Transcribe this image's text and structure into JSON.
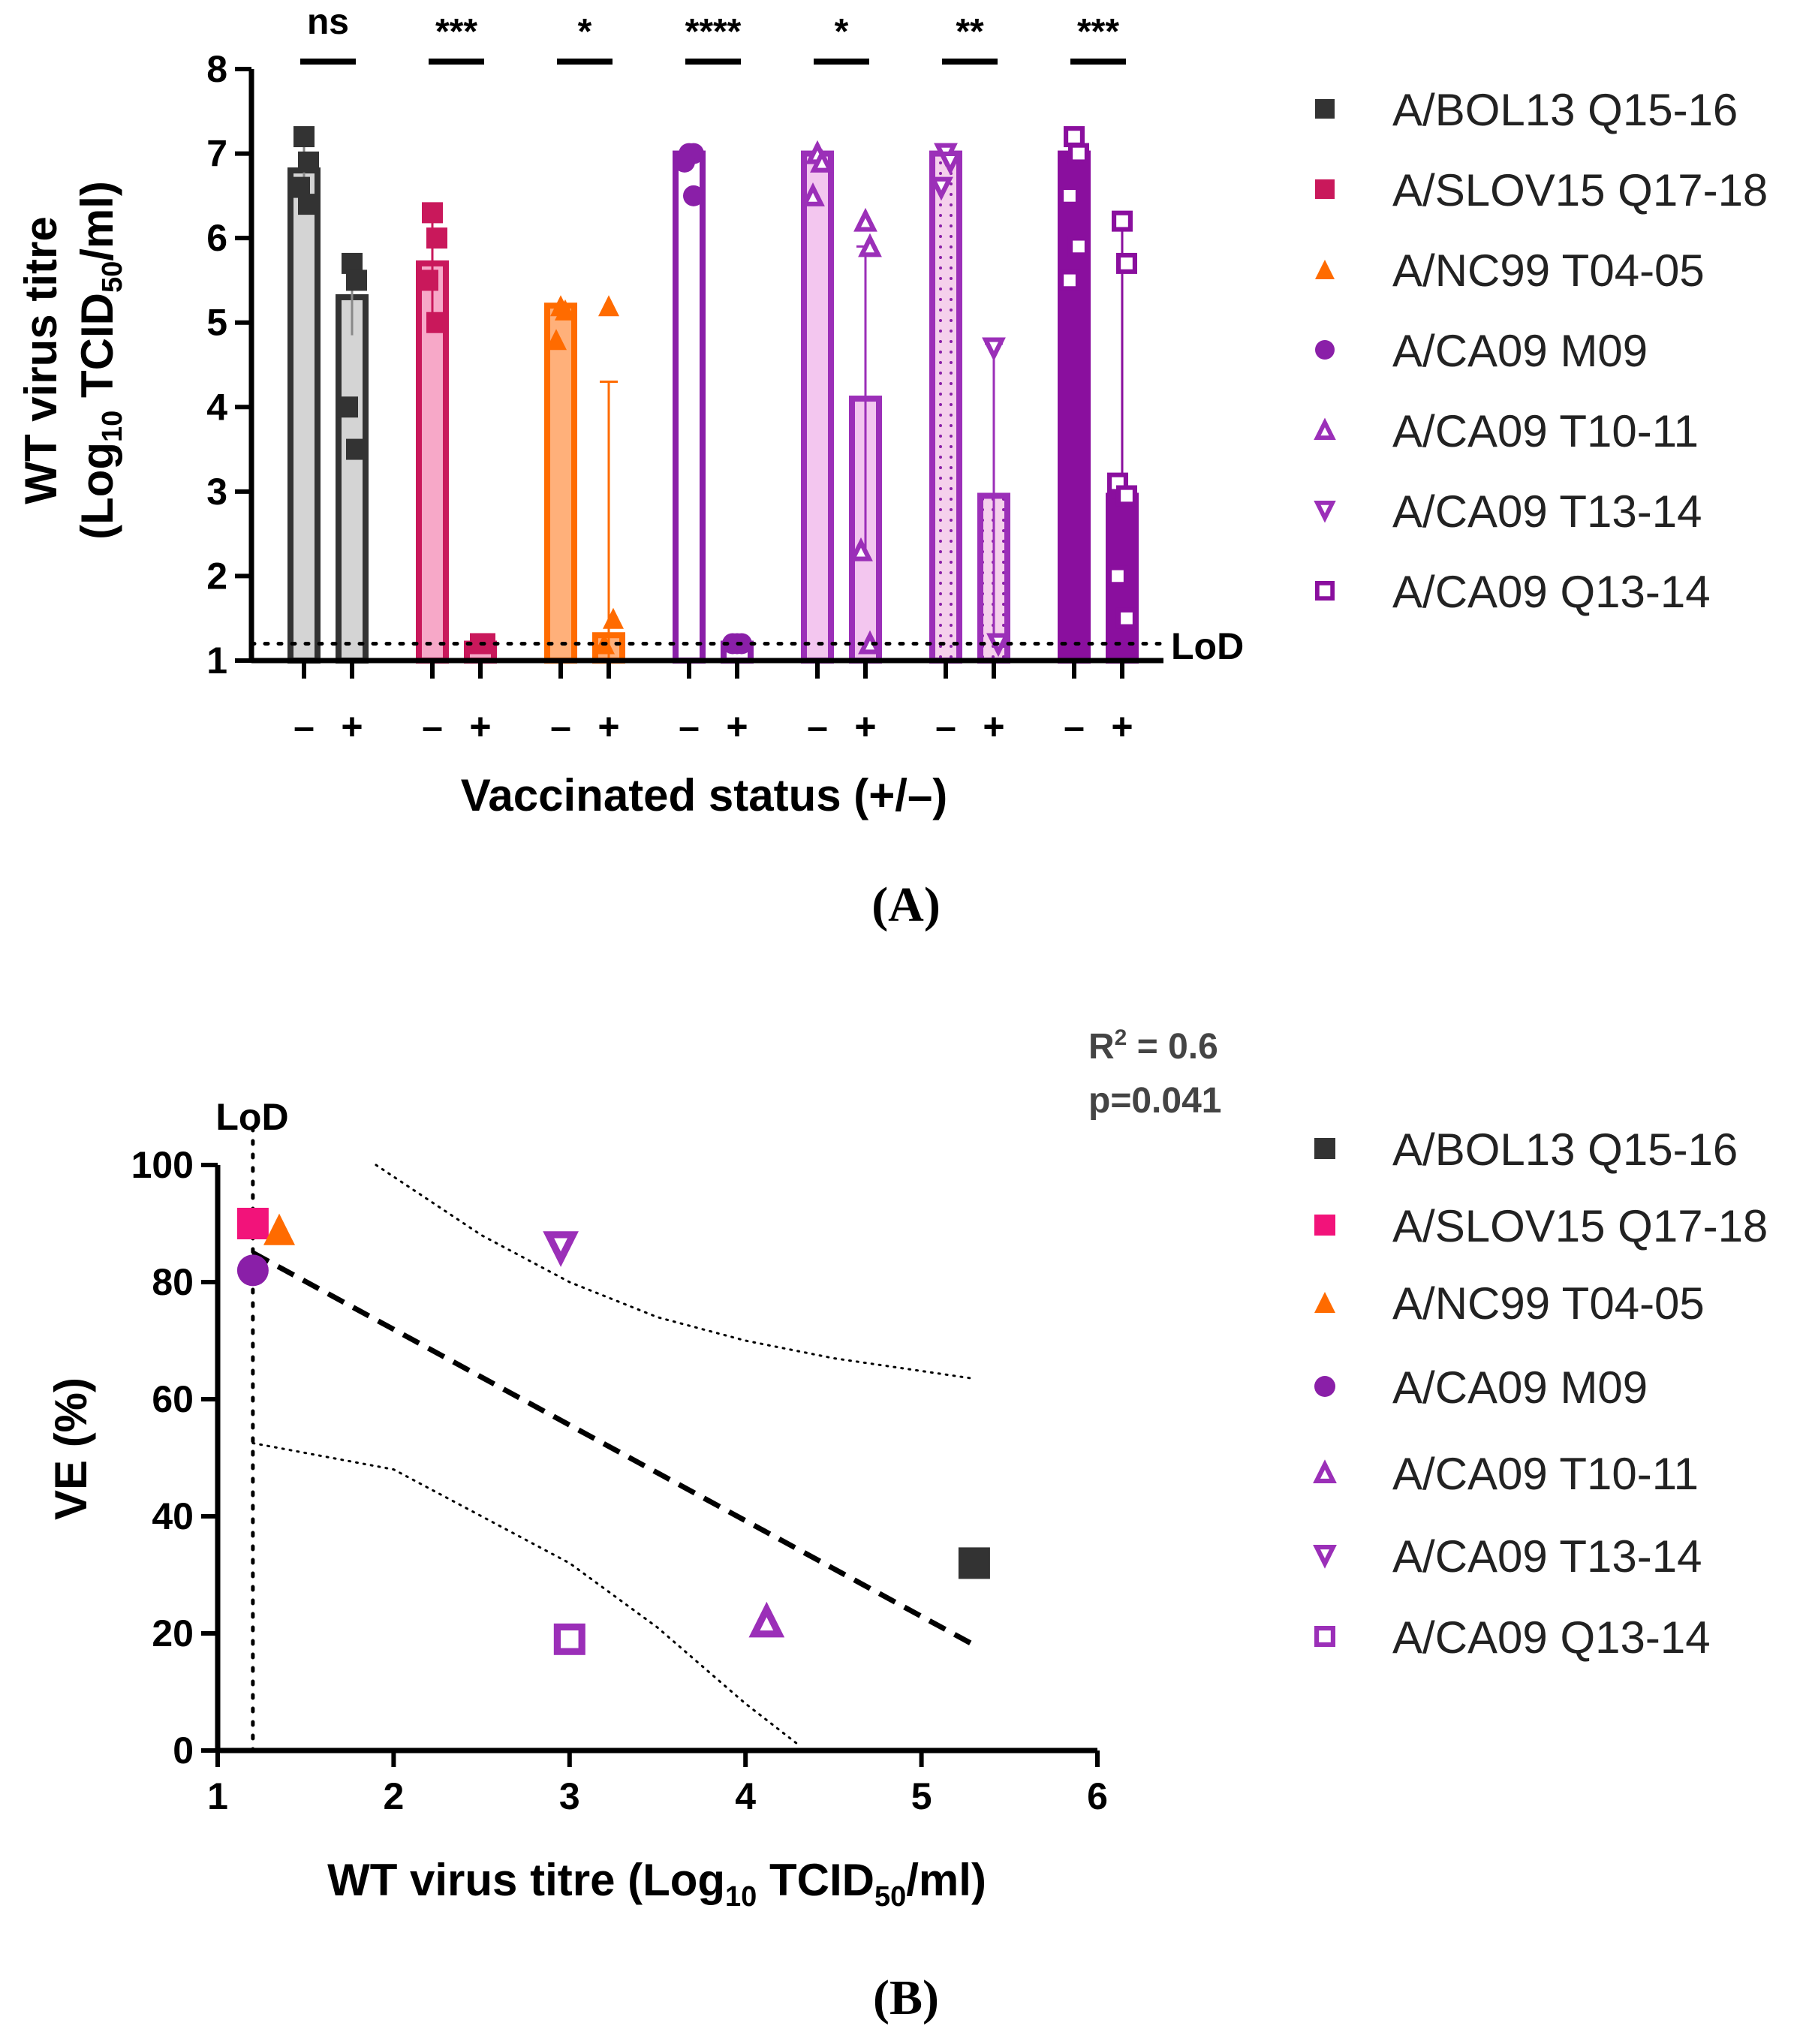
{
  "chart_data": [
    {
      "panel": "A",
      "type": "bar",
      "panel_label": "(A)",
      "ylabel_line1": "WT virus titre",
      "ylabel_line2_prefix": "(Log",
      "ylabel_line2_sub1": "10",
      "ylabel_line2_mid": " TCID",
      "ylabel_line2_sub2": "50",
      "ylabel_line2_suffix": "/ml)",
      "xlabel": "Vaccinated status (+/–)",
      "ylim": [
        1,
        8
      ],
      "yticks": [
        "1",
        "2",
        "3",
        "4",
        "5",
        "6",
        "7",
        "8"
      ],
      "lod_label": "LoD",
      "lod_value": 1.2,
      "groups": [
        {
          "name": "A/BOL13 Q15-16",
          "color": "#333333",
          "marker": "square-filled",
          "fill": "light",
          "unvacc": {
            "label": "–",
            "value": 6.8,
            "err": 0.4,
            "points": [
              7.2,
              6.9,
              6.6,
              6.4
            ]
          },
          "vacc": {
            "label": "+",
            "value": 5.3,
            "err": 0.45,
            "points": [
              5.7,
              5.5,
              4.0,
              3.5
            ]
          },
          "significance": "ns"
        },
        {
          "name": "A/SLOV15 Q17-18",
          "color": "#c9185b",
          "marker": "square-filled",
          "fill": "light",
          "unvacc": {
            "label": "–",
            "value": 5.7,
            "err": 0.6,
            "points": [
              6.3,
              6.0,
              5.5,
              5.0
            ]
          },
          "vacc": {
            "label": "+",
            "value": 1.2,
            "err": 0,
            "points": [
              1.2,
              1.2
            ]
          },
          "significance": "***"
        },
        {
          "name": "A/NC99 T04-05",
          "color": "#ff6b00",
          "marker": "triangle-filled",
          "fill": "light",
          "unvacc": {
            "label": "–",
            "value": 5.2,
            "err": 0,
            "points": [
              5.2,
              5.15,
              4.8
            ]
          },
          "vacc": {
            "label": "+",
            "value": 1.3,
            "err": 3.0,
            "points": [
              5.2,
              1.5,
              1.2
            ]
          },
          "significance": "*"
        },
        {
          "name": "A/CA09 M09",
          "color": "#8a1fa8",
          "marker": "circle-filled",
          "fill": "white",
          "unvacc": {
            "label": "–",
            "value": 7.0,
            "err": 0,
            "points": [
              7.0,
              7.0,
              6.9,
              6.5
            ]
          },
          "vacc": {
            "label": "+",
            "value": 1.2,
            "err": 0,
            "points": [
              1.2,
              1.2,
              1.2
            ]
          },
          "significance": "****"
        },
        {
          "name": "A/CA09 T10-11",
          "color": "#9b2fb8",
          "marker": "triangle-open",
          "fill": "pink",
          "unvacc": {
            "label": "–",
            "value": 7.0,
            "err": 0,
            "points": [
              7.0,
              6.9,
              6.5
            ]
          },
          "vacc": {
            "label": "+",
            "value": 4.1,
            "err": 1.8,
            "points": [
              6.2,
              5.9,
              2.3,
              1.2
            ]
          },
          "significance": "*"
        },
        {
          "name": "A/CA09 T13-14",
          "color": "#9b2fb8",
          "marker": "triangle-down-open",
          "fill": "dotted",
          "unvacc": {
            "label": "–",
            "value": 7.0,
            "err": 0,
            "points": [
              7.0,
              6.9,
              6.6
            ]
          },
          "vacc": {
            "label": "+",
            "value": 2.95,
            "err": 1.8,
            "points": [
              4.7,
              1.2
            ]
          },
          "significance": "**"
        },
        {
          "name": "A/CA09 Q13-14",
          "color": "#8a0f9e",
          "marker": "square-open",
          "fill": "solid",
          "unvacc": {
            "label": "–",
            "value": 7.0,
            "err": 0,
            "points": [
              7.2,
              7.0,
              6.5,
              5.9,
              5.5
            ]
          },
          "vacc": {
            "label": "+",
            "value": 2.95,
            "err": 3.2,
            "points": [
              6.2,
              5.7,
              3.1,
              2.95,
              2.0,
              1.5
            ]
          },
          "significance": "***"
        }
      ]
    },
    {
      "panel": "B",
      "type": "scatter",
      "panel_label": "(B)",
      "ylabel": "VE (%)",
      "xlabel_prefix": "WT virus titre (Log",
      "xlabel_sub1": "10",
      "xlabel_mid": " TCID",
      "xlabel_sub2": "50",
      "xlabel_suffix": "/ml)",
      "xlim": [
        1,
        6
      ],
      "ylim": [
        0,
        100
      ],
      "xticks": [
        "1",
        "2",
        "3",
        "4",
        "5",
        "6"
      ],
      "yticks": [
        "0",
        "20",
        "40",
        "60",
        "80",
        "100"
      ],
      "lod_label": "LoD",
      "lod_value": 1.2,
      "stats": {
        "r2_prefix": "R",
        "r2_sup": "2",
        "r2_suffix": " = 0.6",
        "p": "p=0.041"
      },
      "regression": {
        "x": [
          1.2,
          5.3
        ],
        "y": [
          85,
          18
        ]
      },
      "ci_upper": {
        "x": [
          1.9,
          2.5,
          3.0,
          3.5,
          4.0,
          4.5,
          5.3
        ],
        "y": [
          100,
          88,
          80,
          74,
          70,
          67,
          63.5
        ]
      },
      "ci_lower": {
        "x": [
          1.2,
          2.0,
          2.5,
          3.0,
          3.5,
          4.0,
          4.3
        ],
        "y": [
          52.5,
          48,
          40,
          32,
          21,
          8,
          1
        ]
      },
      "points": [
        {
          "name": "A/BOL13 Q15-16",
          "x": 5.3,
          "y": 32,
          "color": "#333333",
          "marker": "square-filled"
        },
        {
          "name": "A/SLOV15 Q17-18",
          "x": 1.2,
          "y": 90,
          "color": "#f2137a",
          "marker": "square-filled"
        },
        {
          "name": "A/NC99 T04-05",
          "x": 1.35,
          "y": 89,
          "color": "#ff6b00",
          "marker": "triangle-filled"
        },
        {
          "name": "A/CA09 M09",
          "x": 1.2,
          "y": 82,
          "color": "#8a1fa8",
          "marker": "circle-filled"
        },
        {
          "name": "A/CA09 T10-11",
          "x": 4.12,
          "y": 22,
          "color": "#9b2fb8",
          "marker": "triangle-open"
        },
        {
          "name": "A/CA09 T13-14",
          "x": 2.95,
          "y": 86,
          "color": "#9b2fb8",
          "marker": "triangle-down-open"
        },
        {
          "name": "A/CA09 Q13-14",
          "x": 3.0,
          "y": 19,
          "color": "#9b2fb8",
          "marker": "square-open"
        }
      ]
    }
  ]
}
